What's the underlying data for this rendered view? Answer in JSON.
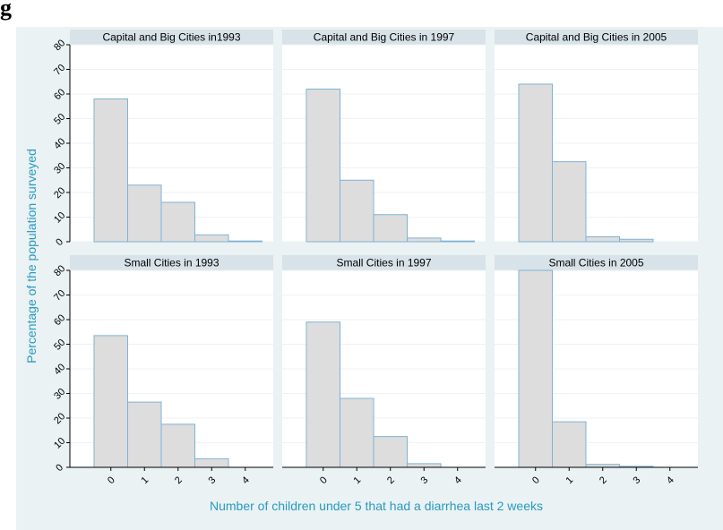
{
  "figure_label": "g",
  "colors": {
    "background": "#eaf2f3",
    "plot_bg": "#ffffff",
    "strip_bg": "#d7e3e8",
    "bar_fill": "#dddddd",
    "bar_stroke": "#7fb2d6",
    "axis_title": "#2a9ac2",
    "grid": "#eef2f4",
    "text": "#000000"
  },
  "chart_data": {
    "type": "bar",
    "layout": "2x3 faceted histograms",
    "xlabel": "Number of children under 5 that had a diarrhea last 2 weeks",
    "ylabel": "Percentage of the population surveyed",
    "x_ticks": [
      "0",
      "1",
      "2",
      "3",
      "4"
    ],
    "y_ticks": [
      "0",
      "10",
      "20",
      "30",
      "40",
      "50",
      "60",
      "70",
      "80"
    ],
    "ylim": [
      0,
      80
    ],
    "grid": true,
    "panels": [
      {
        "title": "Capital and Big Cities in1993",
        "categories": [
          0,
          1,
          2,
          3,
          4
        ],
        "values": [
          58,
          23,
          16,
          2.8,
          0.3
        ]
      },
      {
        "title": "Capital and Big Cities in 1997",
        "categories": [
          0,
          1,
          2,
          3,
          4
        ],
        "values": [
          62,
          25,
          11,
          1.5,
          0.3
        ]
      },
      {
        "title": "Capital and Big Cities in 2005",
        "categories": [
          0,
          1,
          2,
          3
        ],
        "values": [
          64,
          32.5,
          2,
          1
        ]
      },
      {
        "title": "Small Cities in 1993",
        "categories": [
          0,
          1,
          2,
          3
        ],
        "values": [
          53.5,
          26.5,
          17.5,
          3.5
        ]
      },
      {
        "title": "Small Cities in 1997",
        "categories": [
          0,
          1,
          2,
          3
        ],
        "values": [
          59,
          28,
          12.5,
          1.5
        ]
      },
      {
        "title": "Small Cities in 2005",
        "categories": [
          0,
          1,
          2,
          3
        ],
        "values": [
          80,
          18.5,
          1.2,
          0.4
        ]
      }
    ]
  }
}
